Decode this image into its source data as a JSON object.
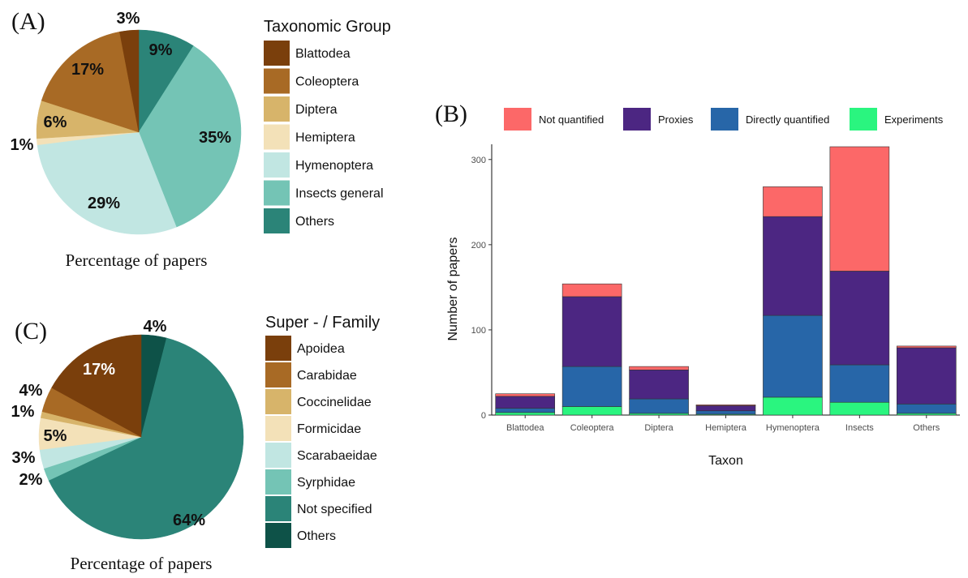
{
  "panels": {
    "a": {
      "letter": "(A)",
      "caption": "Percentage of papers",
      "legend_title": "Taxonomic Group"
    },
    "b": {
      "letter": "(B)"
    },
    "c": {
      "letter": "(C)",
      "caption": "Percentage of papers",
      "legend_title": "Super - / Family"
    }
  },
  "chart_data": [
    {
      "type": "pie",
      "panel": "A",
      "title": "",
      "caption": "Percentage of papers",
      "legend_title": "Taxonomic Group",
      "legend_placement": "right",
      "slices": [
        {
          "label": "Blattodea",
          "value": 3,
          "text": "3%",
          "color": "#7a3f0c"
        },
        {
          "label": "Coleoptera",
          "value": 17,
          "text": "17%",
          "color": "#a86a25"
        },
        {
          "label": "Diptera",
          "value": 6,
          "text": "6%",
          "color": "#d7b46a"
        },
        {
          "label": "Hemiptera",
          "value": 1,
          "text": "1%",
          "color": "#f3e1b8"
        },
        {
          "label": "Hymenoptera",
          "value": 29,
          "text": "29%",
          "color": "#c1e6e2"
        },
        {
          "label": "Insects general",
          "value": 35,
          "text": "35%",
          "color": "#74c4b5"
        },
        {
          "label": "Others",
          "value": 9,
          "text": "9%",
          "color": "#2b8478"
        }
      ]
    },
    {
      "type": "bar",
      "stacked": true,
      "panel": "B",
      "title": "",
      "xlabel": "Taxon",
      "ylabel": "Number of papers",
      "ylim": [
        0,
        315
      ],
      "yticks": [
        0,
        100,
        200,
        300
      ],
      "grid": false,
      "legend_placement": "top",
      "categories": [
        "Blattodea",
        "Coleoptera",
        "Diptera",
        "Hemiptera",
        "Hymenoptera",
        "Insects",
        "Others"
      ],
      "series": [
        {
          "name": "Experiments",
          "color": "#2af57f",
          "values": [
            3,
            10,
            2,
            1,
            21,
            15,
            2
          ]
        },
        {
          "name": "Directly quantified",
          "color": "#2766a8",
          "values": [
            5,
            47,
            17,
            4,
            96,
            44,
            11
          ]
        },
        {
          "name": "Proxies",
          "color": "#4c2682",
          "values": [
            14,
            82,
            34,
            6,
            116,
            110,
            66
          ]
        },
        {
          "name": "Not quantified",
          "color": "#fc6868",
          "values": [
            3,
            15,
            4,
            1,
            35,
            146,
            2
          ]
        }
      ],
      "legend_order": [
        "Not quantified",
        "Proxies",
        "Directly quantified",
        "Experiments"
      ]
    },
    {
      "type": "pie",
      "panel": "C",
      "title": "",
      "caption": "Percentage of papers",
      "legend_title": "Super - / Family",
      "legend_placement": "right",
      "slices": [
        {
          "label": "Apoidea",
          "value": 17,
          "text": "17%",
          "color": "#7a3f0c"
        },
        {
          "label": "Carabidae",
          "value": 4,
          "text": "4%",
          "color": "#a86a25"
        },
        {
          "label": "Coccinelidae",
          "value": 1,
          "text": "1%",
          "color": "#d7b46a"
        },
        {
          "label": "Formicidae",
          "value": 5,
          "text": "5%",
          "color": "#f3e1b8"
        },
        {
          "label": "Scarabaeidae",
          "value": 3,
          "text": "3%",
          "color": "#c1e6e2"
        },
        {
          "label": "Syrphidae",
          "value": 2,
          "text": "2%",
          "color": "#74c4b5"
        },
        {
          "label": "Not specified",
          "value": 64,
          "text": "64%",
          "color": "#2b8478"
        },
        {
          "label": "Others",
          "value": 4,
          "text": "4%",
          "color": "#0e5248"
        }
      ]
    }
  ]
}
